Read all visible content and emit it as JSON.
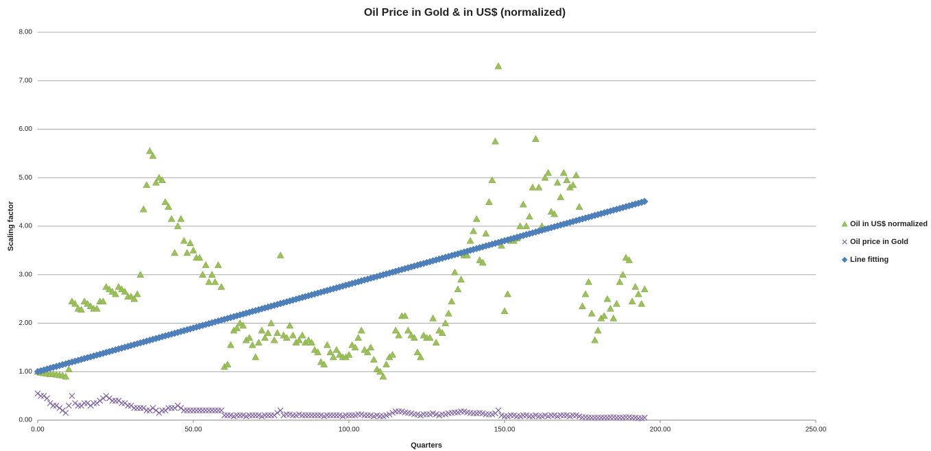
{
  "chart_data": {
    "type": "scatter",
    "title": "Oil Price in Gold & in US$ (normalized)",
    "x_label": "Quarters",
    "y_label": "Scaling factor",
    "xlim": [
      0,
      250
    ],
    "ylim": [
      0,
      8
    ],
    "xticks": [
      {
        "value": 0,
        "label": "0.00"
      },
      {
        "value": 50,
        "label": "50.00"
      },
      {
        "value": 100,
        "label": "100.00"
      },
      {
        "value": 150,
        "label": "150.00"
      },
      {
        "value": 200,
        "label": "200.00"
      },
      {
        "value": 250,
        "label": "250.00"
      }
    ],
    "yticks": [
      {
        "value": 0,
        "label": "0.00"
      },
      {
        "value": 1,
        "label": "1.00"
      },
      {
        "value": 2,
        "label": "2.00"
      },
      {
        "value": 3,
        "label": "3.00"
      },
      {
        "value": 4,
        "label": "4.00"
      },
      {
        "value": 5,
        "label": "5.00"
      },
      {
        "value": 6,
        "label": "6.00"
      },
      {
        "value": 7,
        "label": "7.00"
      },
      {
        "value": 8,
        "label": "8.00"
      }
    ],
    "grid": true,
    "legend": "right",
    "x": [
      0,
      1,
      2,
      3,
      4,
      5,
      6,
      7,
      8,
      9,
      10,
      11,
      12,
      13,
      14,
      15,
      16,
      17,
      18,
      19,
      20,
      21,
      22,
      23,
      24,
      25,
      26,
      27,
      28,
      29,
      30,
      31,
      32,
      33,
      34,
      35,
      36,
      37,
      38,
      39,
      40,
      41,
      42,
      43,
      44,
      45,
      46,
      47,
      48,
      49,
      50,
      51,
      52,
      53,
      54,
      55,
      56,
      57,
      58,
      59,
      60,
      61,
      62,
      63,
      64,
      65,
      66,
      67,
      68,
      69,
      70,
      71,
      72,
      73,
      74,
      75,
      76,
      77,
      78,
      79,
      80,
      81,
      82,
      83,
      84,
      85,
      86,
      87,
      88,
      89,
      90,
      91,
      92,
      93,
      94,
      95,
      96,
      97,
      98,
      99,
      100,
      101,
      102,
      103,
      104,
      105,
      106,
      107,
      108,
      109,
      110,
      111,
      112,
      113,
      114,
      115,
      116,
      117,
      118,
      119,
      120,
      121,
      122,
      123,
      124,
      125,
      126,
      127,
      128,
      129,
      130,
      131,
      132,
      133,
      134,
      135,
      136,
      137,
      138,
      139,
      140,
      141,
      142,
      143,
      144,
      145,
      146,
      147,
      148,
      149,
      150,
      151,
      152,
      153,
      154,
      155,
      156,
      157,
      158,
      159,
      160,
      161,
      162,
      163,
      164,
      165,
      166,
      167,
      168,
      169,
      170,
      171,
      172,
      173,
      174,
      175,
      176,
      177,
      178,
      179,
      180,
      181,
      182,
      183,
      184,
      185,
      186,
      187,
      188,
      189,
      190,
      191,
      192,
      193,
      194,
      195
    ],
    "series": [
      {
        "name": "Oil in US$ normalized",
        "color": "#9bc25a",
        "marker": "triangle",
        "values": [
          1.0,
          0.98,
          0.97,
          0.96,
          0.95,
          0.95,
          0.94,
          0.93,
          0.92,
          0.9,
          1.05,
          2.45,
          2.4,
          2.3,
          2.28,
          2.45,
          2.4,
          2.35,
          2.3,
          2.3,
          2.45,
          2.45,
          2.75,
          2.7,
          2.65,
          2.6,
          2.75,
          2.7,
          2.65,
          2.55,
          2.55,
          2.5,
          2.6,
          3.0,
          4.35,
          4.85,
          5.55,
          5.45,
          4.9,
          5.0,
          4.95,
          4.5,
          4.4,
          4.15,
          3.45,
          4.0,
          4.15,
          3.7,
          3.45,
          3.65,
          3.5,
          3.35,
          3.35,
          3.0,
          3.2,
          2.85,
          3.0,
          2.85,
          3.2,
          2.75,
          1.1,
          1.15,
          1.55,
          1.85,
          1.9,
          2.0,
          1.95,
          1.65,
          1.7,
          1.55,
          1.3,
          1.6,
          1.85,
          1.7,
          1.8,
          2.0,
          1.65,
          1.8,
          3.4,
          1.75,
          1.7,
          1.95,
          1.75,
          1.6,
          1.65,
          1.75,
          1.6,
          1.65,
          1.6,
          1.45,
          1.4,
          1.2,
          1.15,
          1.55,
          1.4,
          1.3,
          1.45,
          1.35,
          1.3,
          1.3,
          1.35,
          1.55,
          1.5,
          1.7,
          1.85,
          1.45,
          1.4,
          1.5,
          1.25,
          1.05,
          1.0,
          0.9,
          1.15,
          1.3,
          1.35,
          1.85,
          1.75,
          2.15,
          2.15,
          1.85,
          1.75,
          1.7,
          1.4,
          1.3,
          1.75,
          1.7,
          1.7,
          2.1,
          1.6,
          1.85,
          1.8,
          2.0,
          2.2,
          2.45,
          3.05,
          2.7,
          2.9,
          3.4,
          3.4,
          3.7,
          3.9,
          4.15,
          3.3,
          3.25,
          3.85,
          4.5,
          4.95,
          5.75,
          7.3,
          3.6,
          2.25,
          2.6,
          3.7,
          3.7,
          3.75,
          4.0,
          4.45,
          4.0,
          4.2,
          4.8,
          5.8,
          4.8,
          4.0,
          5.0,
          5.1,
          4.3,
          4.25,
          4.9,
          4.6,
          5.1,
          4.95,
          4.8,
          4.85,
          5.05,
          4.4,
          2.35,
          2.6,
          2.85,
          2.2,
          1.65,
          1.85,
          2.1,
          2.15,
          2.5,
          2.3,
          2.1,
          2.4,
          2.85,
          3.0,
          3.35,
          3.3,
          2.45,
          2.75,
          2.6,
          2.4,
          2.7
        ]
      },
      {
        "name": "Oil price in Gold",
        "color": "#8064a2",
        "marker": "x",
        "values": [
          0.55,
          0.5,
          0.5,
          0.45,
          0.35,
          0.3,
          0.3,
          0.25,
          0.2,
          0.15,
          0.3,
          0.5,
          0.35,
          0.3,
          0.3,
          0.35,
          0.35,
          0.3,
          0.35,
          0.35,
          0.4,
          0.45,
          0.5,
          0.45,
          0.4,
          0.4,
          0.4,
          0.35,
          0.35,
          0.3,
          0.3,
          0.25,
          0.25,
          0.25,
          0.25,
          0.2,
          0.2,
          0.25,
          0.2,
          0.15,
          0.2,
          0.2,
          0.25,
          0.25,
          0.25,
          0.3,
          0.25,
          0.2,
          0.2,
          0.2,
          0.2,
          0.2,
          0.2,
          0.2,
          0.2,
          0.2,
          0.2,
          0.2,
          0.2,
          0.2,
          0.1,
          0.1,
          0.1,
          0.08,
          0.1,
          0.1,
          0.1,
          0.08,
          0.1,
          0.1,
          0.1,
          0.1,
          0.08,
          0.1,
          0.1,
          0.1,
          0.1,
          0.15,
          0.2,
          0.1,
          0.12,
          0.12,
          0.1,
          0.1,
          0.12,
          0.1,
          0.1,
          0.1,
          0.1,
          0.1,
          0.1,
          0.1,
          0.08,
          0.1,
          0.1,
          0.1,
          0.1,
          0.1,
          0.08,
          0.1,
          0.1,
          0.1,
          0.1,
          0.12,
          0.12,
          0.1,
          0.1,
          0.1,
          0.08,
          0.1,
          0.08,
          0.08,
          0.1,
          0.12,
          0.15,
          0.18,
          0.18,
          0.18,
          0.16,
          0.15,
          0.14,
          0.12,
          0.12,
          0.1,
          0.12,
          0.12,
          0.12,
          0.14,
          0.12,
          0.1,
          0.12,
          0.12,
          0.14,
          0.15,
          0.16,
          0.16,
          0.18,
          0.18,
          0.16,
          0.15,
          0.14,
          0.14,
          0.15,
          0.14,
          0.12,
          0.12,
          0.12,
          0.14,
          0.2,
          0.1,
          0.08,
          0.08,
          0.1,
          0.1,
          0.08,
          0.08,
          0.1,
          0.1,
          0.08,
          0.08,
          0.1,
          0.08,
          0.08,
          0.1,
          0.08,
          0.1,
          0.1,
          0.08,
          0.1,
          0.1,
          0.1,
          0.08,
          0.1,
          0.1,
          0.08,
          0.06,
          0.06,
          0.05,
          0.05,
          0.05,
          0.05,
          0.05,
          0.05,
          0.05,
          0.06,
          0.06,
          0.05,
          0.05,
          0.05,
          0.06,
          0.06,
          0.05,
          0.05,
          0.04,
          0.04,
          0.05
        ]
      },
      {
        "name": "Line fitting",
        "color": "#4f81bd",
        "marker": "diamond",
        "values": [
          1,
          1.018,
          1.036,
          1.054,
          1.072,
          1.09,
          1.108,
          1.126,
          1.144,
          1.162,
          1.18,
          1.198,
          1.216,
          1.234,
          1.252,
          1.27,
          1.288,
          1.306,
          1.324,
          1.342,
          1.36,
          1.378,
          1.396,
          1.414,
          1.432,
          1.45,
          1.468,
          1.486,
          1.504,
          1.522,
          1.54,
          1.558,
          1.576,
          1.594,
          1.612,
          1.63,
          1.648,
          1.666,
          1.684,
          1.702,
          1.72,
          1.738,
          1.756,
          1.774,
          1.792,
          1.81,
          1.828,
          1.846,
          1.864,
          1.882,
          1.9,
          1.918,
          1.936,
          1.954,
          1.972,
          1.99,
          2.008,
          2.026,
          2.044,
          2.062,
          2.08,
          2.098,
          2.116,
          2.134,
          2.152,
          2.17,
          2.188,
          2.206,
          2.224,
          2.242,
          2.26,
          2.278,
          2.296,
          2.314,
          2.332,
          2.35,
          2.368,
          2.386,
          2.404,
          2.422,
          2.44,
          2.458,
          2.476,
          2.494,
          2.512,
          2.53,
          2.548,
          2.566,
          2.584,
          2.602,
          2.62,
          2.638,
          2.656,
          2.674,
          2.692,
          2.71,
          2.728,
          2.746,
          2.764,
          2.782,
          2.8,
          2.818,
          2.836,
          2.854,
          2.872,
          2.89,
          2.908,
          2.926,
          2.944,
          2.962,
          2.98,
          2.998,
          3.016,
          3.034,
          3.052,
          3.07,
          3.088,
          3.106,
          3.124,
          3.142,
          3.16,
          3.178,
          3.196,
          3.214,
          3.232,
          3.25,
          3.268,
          3.286,
          3.304,
          3.322,
          3.34,
          3.358,
          3.376,
          3.394,
          3.412,
          3.43,
          3.448,
          3.466,
          3.484,
          3.502,
          3.52,
          3.538,
          3.556,
          3.574,
          3.592,
          3.61,
          3.628,
          3.646,
          3.664,
          3.682,
          3.7,
          3.718,
          3.736,
          3.754,
          3.772,
          3.79,
          3.808,
          3.826,
          3.844,
          3.862,
          3.88,
          3.898,
          3.916,
          3.934,
          3.952,
          3.97,
          3.988,
          4.006,
          4.024,
          4.042,
          4.06,
          4.078,
          4.096,
          4.114,
          4.132,
          4.15,
          4.168,
          4.186,
          4.204,
          4.222,
          4.24,
          4.258,
          4.276,
          4.294,
          4.312,
          4.33,
          4.348,
          4.366,
          4.384,
          4.402,
          4.42,
          4.438,
          4.456,
          4.474,
          4.492,
          4.51
        ]
      }
    ]
  }
}
